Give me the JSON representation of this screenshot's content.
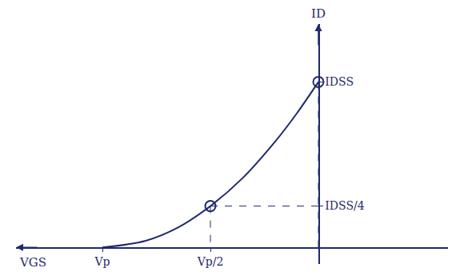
{
  "chart_data": {
    "type": "line",
    "x_label": "VGS",
    "y_label": "ID",
    "x": [
      -1,
      -0.8,
      -0.65,
      -0.5,
      -0.35,
      -0.2,
      -0.1,
      0
    ],
    "values": [
      0,
      0.04,
      0.12,
      0.25,
      0.42,
      0.64,
      0.81,
      1
    ],
    "marked_points": [
      {
        "x": -0.5,
        "y": 0.25
      },
      {
        "x": 0,
        "y": 1
      }
    ],
    "marker": "circle-open",
    "line_style": "solid",
    "color": "#1f2a6b",
    "xlim": [
      -1.4,
      0.6
    ],
    "ylim": [
      -0.1,
      1.35
    ],
    "xticks": [
      {
        "value": -1,
        "label": "Vp"
      },
      {
        "value": -0.5,
        "label": "Vp/2"
      }
    ],
    "yticks": [
      {
        "value": 0.25,
        "label": "IDSS/4"
      },
      {
        "value": 1,
        "label": "IDSS"
      }
    ],
    "grid": false
  }
}
